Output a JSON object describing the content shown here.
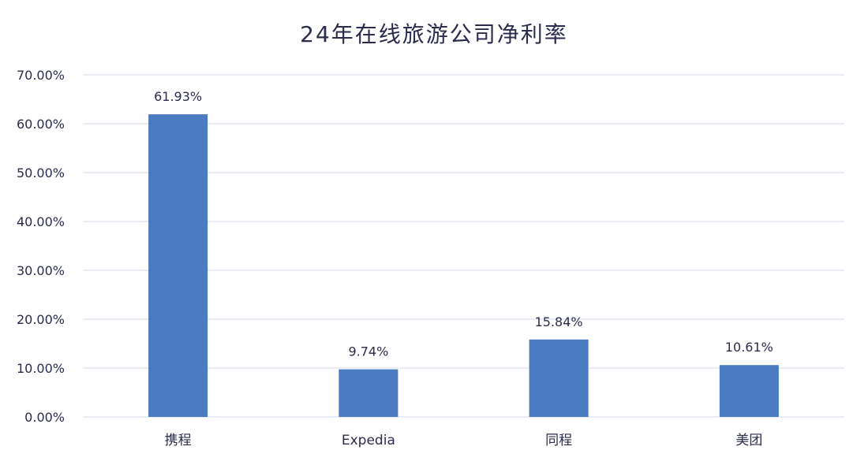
{
  "chart_data": {
    "type": "bar",
    "title": "24年在线旅游公司净利率",
    "categories": [
      "携程",
      "Expedia",
      "同程",
      "美团"
    ],
    "values": [
      61.93,
      9.74,
      15.84,
      10.61
    ],
    "data_labels": [
      "61.93%",
      "9.74%",
      "15.84%",
      "10.61%"
    ],
    "y_ticks": [
      0,
      10,
      20,
      30,
      40,
      50,
      60,
      70
    ],
    "y_tick_labels": [
      "0.00%",
      "10.00%",
      "20.00%",
      "30.00%",
      "40.00%",
      "50.00%",
      "60.00%",
      "70.00%"
    ],
    "ylim": [
      0,
      70
    ],
    "grid": true,
    "legend": "none",
    "bar_color": "#4a7abf",
    "grid_color": "#d3d9e6",
    "text_color": "#2b2b4d"
  }
}
